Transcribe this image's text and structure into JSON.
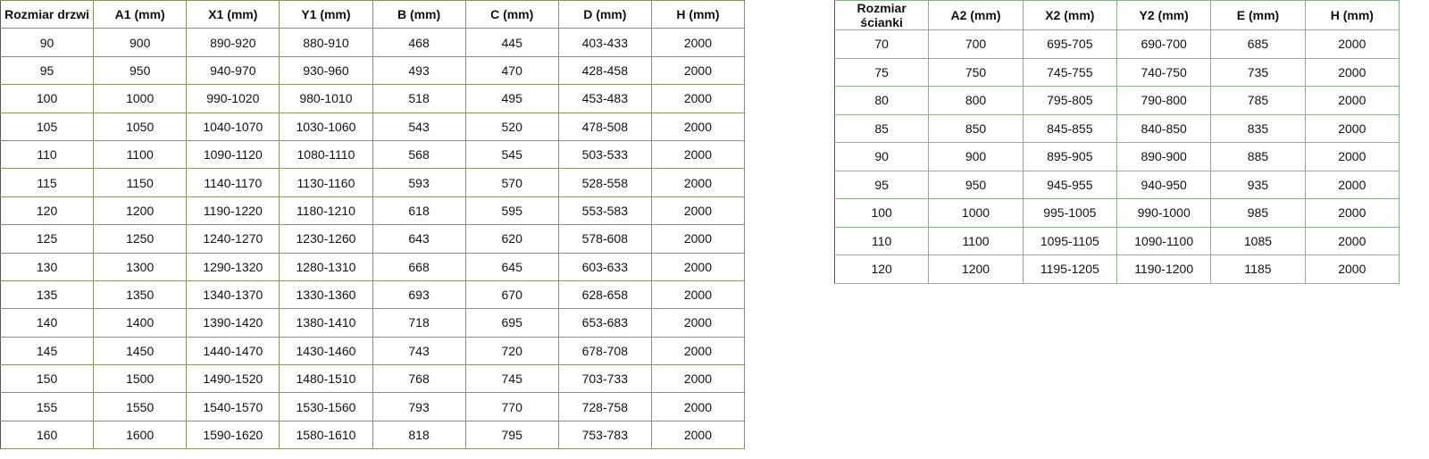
{
  "door_table": {
    "headers": [
      "Rozmiar drzwi",
      "A1 (mm)",
      "X1 (mm)",
      "Y1 (mm)",
      "B (mm)",
      "C (mm)",
      "D (mm)",
      "H (mm)"
    ],
    "rows": [
      [
        "90",
        "900",
        "890-920",
        "880-910",
        "468",
        "445",
        "403-433",
        "2000"
      ],
      [
        "95",
        "950",
        "940-970",
        "930-960",
        "493",
        "470",
        "428-458",
        "2000"
      ],
      [
        "100",
        "1000",
        "990-1020",
        "980-1010",
        "518",
        "495",
        "453-483",
        "2000"
      ],
      [
        "105",
        "1050",
        "1040-1070",
        "1030-1060",
        "543",
        "520",
        "478-508",
        "2000"
      ],
      [
        "110",
        "1100",
        "1090-1120",
        "1080-1110",
        "568",
        "545",
        "503-533",
        "2000"
      ],
      [
        "115",
        "1150",
        "1140-1170",
        "1130-1160",
        "593",
        "570",
        "528-558",
        "2000"
      ],
      [
        "120",
        "1200",
        "1190-1220",
        "1180-1210",
        "618",
        "595",
        "553-583",
        "2000"
      ],
      [
        "125",
        "1250",
        "1240-1270",
        "1230-1260",
        "643",
        "620",
        "578-608",
        "2000"
      ],
      [
        "130",
        "1300",
        "1290-1320",
        "1280-1310",
        "668",
        "645",
        "603-633",
        "2000"
      ],
      [
        "135",
        "1350",
        "1340-1370",
        "1330-1360",
        "693",
        "670",
        "628-658",
        "2000"
      ],
      [
        "140",
        "1400",
        "1390-1420",
        "1380-1410",
        "718",
        "695",
        "653-683",
        "2000"
      ],
      [
        "145",
        "1450",
        "1440-1470",
        "1430-1460",
        "743",
        "720",
        "678-708",
        "2000"
      ],
      [
        "150",
        "1500",
        "1490-1520",
        "1480-1510",
        "768",
        "745",
        "703-733",
        "2000"
      ],
      [
        "155",
        "1550",
        "1540-1570",
        "1530-1560",
        "793",
        "770",
        "728-758",
        "2000"
      ],
      [
        "160",
        "1600",
        "1590-1620",
        "1580-1610",
        "818",
        "795",
        "753-783",
        "2000"
      ]
    ]
  },
  "wall_table": {
    "headers": [
      "Rozmiar ścianki",
      "A2 (mm)",
      "X2 (mm)",
      "Y2 (mm)",
      "E (mm)",
      "H (mm)"
    ],
    "rows": [
      [
        "70",
        "700",
        "695-705",
        "690-700",
        "685",
        "2000"
      ],
      [
        "75",
        "750",
        "745-755",
        "740-750",
        "735",
        "2000"
      ],
      [
        "80",
        "800",
        "795-805",
        "790-800",
        "785",
        "2000"
      ],
      [
        "85",
        "850",
        "845-855",
        "840-850",
        "835",
        "2000"
      ],
      [
        "90",
        "900",
        "895-905",
        "890-900",
        "885",
        "2000"
      ],
      [
        "95",
        "950",
        "945-955",
        "940-950",
        "935",
        "2000"
      ],
      [
        "100",
        "1000",
        "995-1005",
        "990-1000",
        "985",
        "2000"
      ],
      [
        "110",
        "1100",
        "1095-1105",
        "1090-1100",
        "1085",
        "2000"
      ],
      [
        "120",
        "1200",
        "1195-1205",
        "1190-1200",
        "1185",
        "2000"
      ]
    ]
  }
}
